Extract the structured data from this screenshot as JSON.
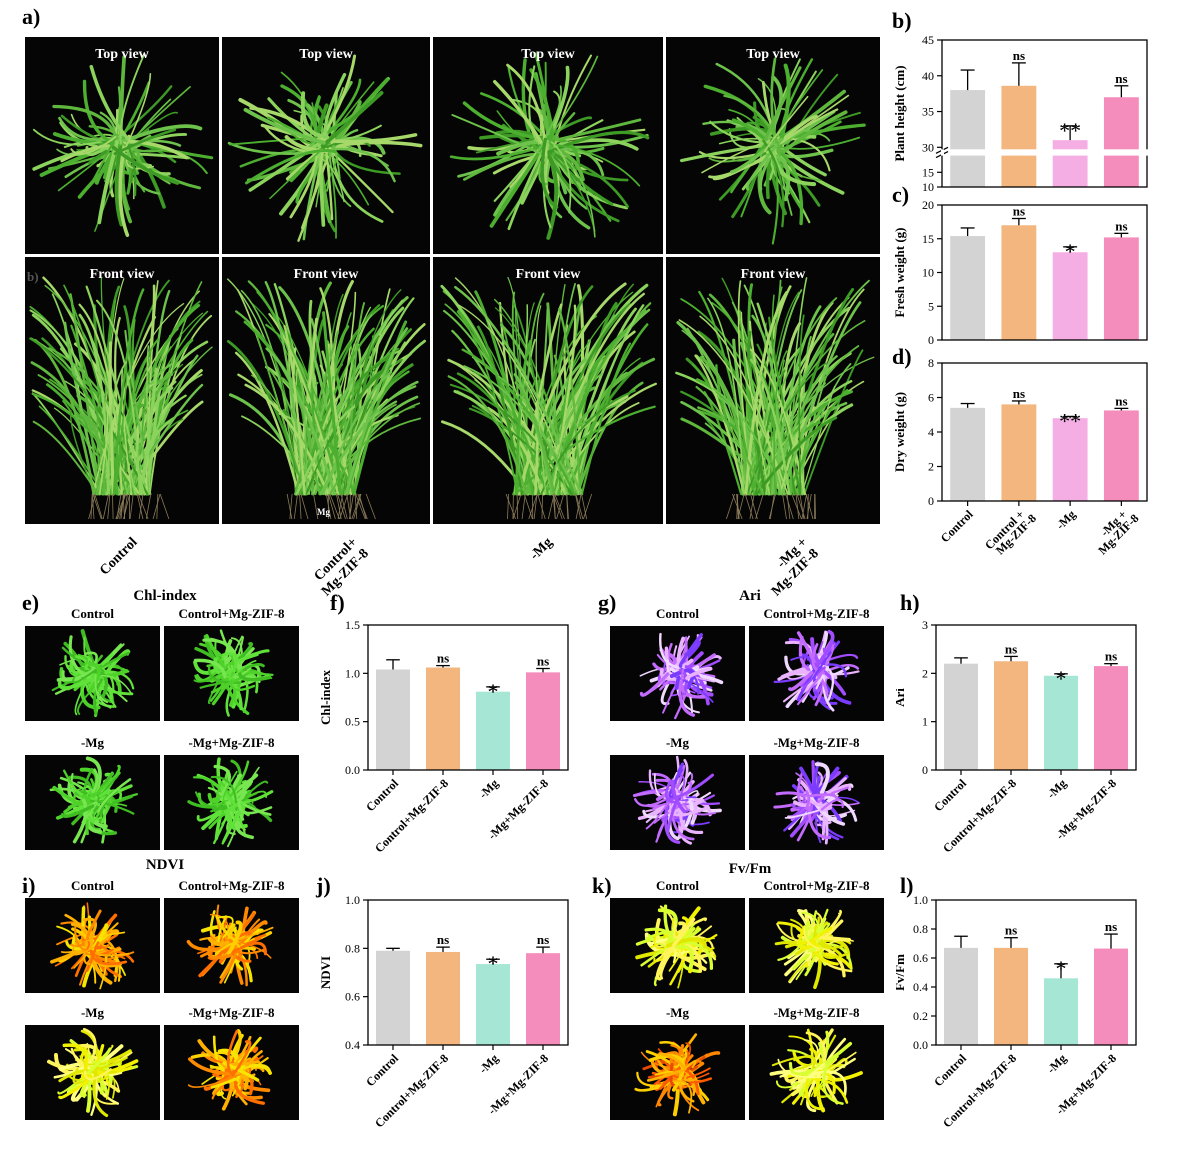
{
  "panels": {
    "a": "a)",
    "b": "b)",
    "c": "c)",
    "d": "d)",
    "e": "e)",
    "f": "f)",
    "g": "g)",
    "h": "h)",
    "i": "i)",
    "j": "j)",
    "k": "k)",
    "l": "l)"
  },
  "photo_labels": {
    "top_view": "Top view",
    "front_view": "Front view",
    "small_b": "b)",
    "pot_tag": "Mg"
  },
  "a_labels": [
    "Control",
    "Control+\nMg-ZIF-8",
    "-Mg",
    "-Mg +\nMg-ZIF-8"
  ],
  "grid_captions": {
    "chl": "Chl-index",
    "ari": "Ari",
    "ndvi": "NDVI",
    "fvfm": "Fv/Fm",
    "control": "Control",
    "control_mg": "Control+Mg-ZIF-8",
    "mg": "-Mg",
    "mg_mg": "-Mg+Mg-ZIF-8"
  },
  "colors": {
    "control": "#d3d3d3",
    "control_mg": "#f2b67e",
    "mg_pink": "#f5aee4",
    "mg_teal": "#a6e6d5",
    "mg_mg": "#f48cbc"
  },
  "chart_data": [
    {
      "id": "b",
      "type": "bar",
      "categories": [
        "Control",
        "Control + Mg-ZIF-8",
        "-Mg",
        "-Mg + Mg-ZIF-8"
      ],
      "values": [
        38.0,
        38.6,
        31.0,
        37.0
      ],
      "errors": [
        2.8,
        3.2,
        2.0,
        1.6
      ],
      "sig": [
        "",
        "ns",
        "**",
        "ns"
      ],
      "ylabel": "Plant height (cm)",
      "ylim": [
        10,
        45
      ],
      "broken_axis": [
        20,
        30
      ],
      "yticks": [
        "10",
        "15",
        "30",
        "35",
        "40",
        "45"
      ],
      "tick_vals": [
        10,
        15,
        30,
        35,
        40,
        45
      ],
      "show_xlabels": false
    },
    {
      "id": "c",
      "type": "bar",
      "categories": [
        "Control",
        "Control + Mg-ZIF-8",
        "-Mg",
        "-Mg + Mg-ZIF-8"
      ],
      "values": [
        15.4,
        17.0,
        13.0,
        15.2
      ],
      "errors": [
        1.2,
        1.0,
        0.8,
        0.6
      ],
      "sig": [
        "",
        "ns",
        "*",
        "ns"
      ],
      "ylabel": "Fresh weight (g)",
      "ylim": [
        0,
        20
      ],
      "yticks": [
        "0",
        "5",
        "10",
        "15",
        "20"
      ],
      "tick_vals": [
        0,
        5,
        10,
        15,
        20
      ],
      "show_xlabels": false
    },
    {
      "id": "d",
      "type": "bar",
      "categories": [
        "Control",
        "Control + Mg-ZIF-8",
        "-Mg",
        "-Mg + Mg-ZIF-8"
      ],
      "xlabels": [
        "Control",
        "Control +\nMg-ZIF-8",
        "-Mg",
        "-Mg +\nMg-ZIF-8"
      ],
      "values": [
        5.4,
        5.6,
        4.8,
        5.25
      ],
      "errors": [
        0.25,
        0.2,
        0.1,
        0.12
      ],
      "sig": [
        "",
        "ns",
        "**",
        "ns"
      ],
      "ylabel": "Dry weight (g)",
      "ylim": [
        0,
        8
      ],
      "yticks": [
        "0",
        "2",
        "4",
        "6",
        "8"
      ],
      "tick_vals": [
        0,
        2,
        4,
        6,
        8
      ],
      "show_xlabels": true
    },
    {
      "id": "f",
      "type": "bar",
      "categories": [
        "Control",
        "Control+Mg-ZIF-8",
        "-Mg",
        "-Mg+Mg-ZIF-8"
      ],
      "values": [
        1.04,
        1.06,
        0.81,
        1.01
      ],
      "errors": [
        0.1,
        0.02,
        0.05,
        0.04
      ],
      "sig": [
        "",
        "ns",
        "*",
        "ns"
      ],
      "ylabel": "Chl-index",
      "ylim": [
        0,
        1.5
      ],
      "yticks": [
        "0.0",
        "0.5",
        "1.0",
        "1.5"
      ],
      "tick_vals": [
        0,
        0.5,
        1.0,
        1.5
      ],
      "show_xlabels": true
    },
    {
      "id": "h",
      "type": "bar",
      "categories": [
        "Control",
        "Control+Mg-ZIF-8",
        "-Mg",
        "-Mg+Mg-ZIF-8"
      ],
      "values": [
        2.2,
        2.25,
        1.95,
        2.15
      ],
      "errors": [
        0.12,
        0.1,
        0.04,
        0.05
      ],
      "sig": [
        "",
        "ns",
        "*",
        "ns"
      ],
      "ylabel": "Ari",
      "ylim": [
        0,
        3
      ],
      "yticks": [
        "0",
        "1",
        "2",
        "3"
      ],
      "tick_vals": [
        0,
        1,
        2,
        3
      ],
      "show_xlabels": true
    },
    {
      "id": "j",
      "type": "bar",
      "categories": [
        "Control",
        "Control+Mg-ZIF-8",
        "-Mg",
        "-Mg+Mg-ZIF-8"
      ],
      "values": [
        0.79,
        0.785,
        0.735,
        0.78
      ],
      "errors": [
        0.01,
        0.02,
        0.02,
        0.025
      ],
      "sig": [
        "",
        "ns",
        "*",
        "ns"
      ],
      "ylabel": "NDVI",
      "ylim": [
        0.4,
        1.0
      ],
      "yticks": [
        "0.4",
        "0.6",
        "0.8",
        "1.0"
      ],
      "tick_vals": [
        0.4,
        0.6,
        0.8,
        1.0
      ],
      "show_xlabels": true
    },
    {
      "id": "l",
      "type": "bar",
      "categories": [
        "Control",
        "Control+Mg-ZIF-8",
        "-Mg",
        "-Mg+Mg-ZIF-8"
      ],
      "values": [
        0.67,
        0.67,
        0.46,
        0.665
      ],
      "errors": [
        0.08,
        0.07,
        0.1,
        0.1
      ],
      "sig": [
        "",
        "ns",
        "*",
        "ns"
      ],
      "ylabel": "Fv/Fm",
      "ylim": [
        0,
        1.0
      ],
      "yticks": [
        "0.0",
        "0.2",
        "0.4",
        "0.6",
        "0.8",
        "1.0"
      ],
      "tick_vals": [
        0,
        0.2,
        0.4,
        0.6,
        0.8,
        1.0
      ],
      "show_xlabels": true
    }
  ]
}
